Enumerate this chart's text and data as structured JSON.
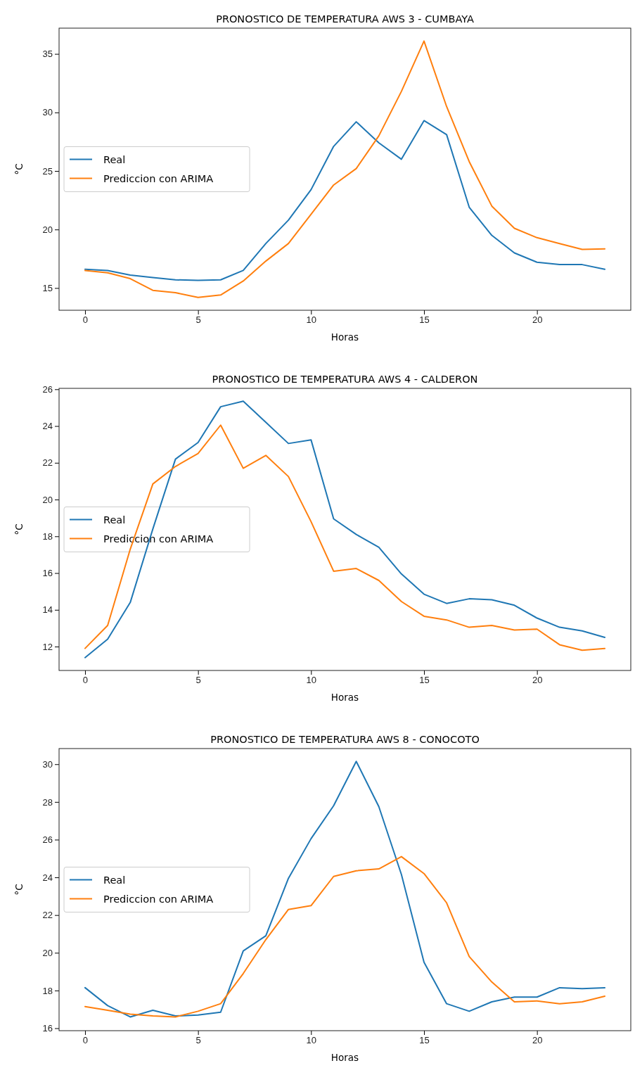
{
  "chart_data": [
    {
      "type": "line",
      "title": "PRONOSTICO DE TEMPERATURA AWS 3 - CUMBAYA",
      "xlabel": "Horas",
      "ylabel": "°C",
      "x": [
        0,
        1,
        2,
        3,
        4,
        5,
        6,
        7,
        8,
        9,
        10,
        11,
        12,
        13,
        14,
        15,
        16,
        17,
        18,
        19,
        20,
        21,
        22,
        23
      ],
      "xlim": [
        -1.15,
        24.15
      ],
      "xticks": [
        0,
        5,
        10,
        15,
        20
      ],
      "ylim": [
        13.1,
        37.2
      ],
      "yticks": [
        15,
        20,
        25,
        30,
        35
      ],
      "legend": "left",
      "series": [
        {
          "name": "Real",
          "color": "#1f77b4",
          "values": [
            16.6,
            16.5,
            16.1,
            15.9,
            15.7,
            15.65,
            15.7,
            16.5,
            18.8,
            20.8,
            23.4,
            27.1,
            29.2,
            27.4,
            26.0,
            29.3,
            28.1,
            21.9,
            19.5,
            18.0,
            17.2,
            17.0,
            17.0,
            16.6
          ]
        },
        {
          "name": "Prediccion con ARIMA",
          "color": "#ff7f0e",
          "values": [
            16.5,
            16.3,
            15.8,
            14.8,
            14.6,
            14.2,
            14.4,
            15.6,
            17.3,
            18.8,
            21.3,
            23.8,
            25.2,
            28.0,
            31.8,
            36.1,
            30.5,
            25.8,
            22.0,
            20.1,
            19.3,
            18.8,
            18.3,
            18.35
          ]
        }
      ]
    },
    {
      "type": "line",
      "title": "PRONOSTICO DE TEMPERATURA AWS 4 - CALDERON",
      "xlabel": "Horas",
      "ylabel": "°C",
      "x": [
        0,
        1,
        2,
        3,
        4,
        5,
        6,
        7,
        8,
        9,
        10,
        11,
        12,
        13,
        14,
        15,
        16,
        17,
        18,
        19,
        20,
        21,
        22,
        23
      ],
      "xlim": [
        -1.15,
        24.15
      ],
      "xticks": [
        0,
        5,
        10,
        15,
        20
      ],
      "ylim": [
        10.7,
        26.05
      ],
      "yticks": [
        12,
        14,
        16,
        18,
        20,
        22,
        24,
        26
      ],
      "legend": "left",
      "series": [
        {
          "name": "Real",
          "color": "#1f77b4",
          "values": [
            11.4,
            12.4,
            14.4,
            18.4,
            22.2,
            23.1,
            25.05,
            25.35,
            24.2,
            23.05,
            23.25,
            18.95,
            18.1,
            17.4,
            15.95,
            14.85,
            14.35,
            14.6,
            14.55,
            14.25,
            13.55,
            13.05,
            12.85,
            12.5
          ]
        },
        {
          "name": "Prediccion con ARIMA",
          "color": "#ff7f0e",
          "values": [
            11.9,
            13.15,
            17.3,
            20.85,
            21.8,
            22.5,
            24.05,
            21.7,
            22.4,
            21.25,
            18.8,
            16.1,
            16.25,
            15.6,
            14.45,
            13.65,
            13.45,
            13.05,
            13.15,
            12.9,
            12.95,
            12.1,
            11.8,
            11.9
          ]
        }
      ]
    },
    {
      "type": "line",
      "title": "PRONOSTICO DE TEMPERATURA AWS 8 - CONOCOTO",
      "xlabel": "Horas",
      "ylabel": "°C",
      "x": [
        0,
        1,
        2,
        3,
        4,
        5,
        6,
        7,
        8,
        9,
        10,
        11,
        12,
        13,
        14,
        15,
        16,
        17,
        18,
        19,
        20,
        21,
        22,
        23
      ],
      "xlim": [
        -1.15,
        24.15
      ],
      "xticks": [
        0,
        5,
        10,
        15,
        20
      ],
      "ylim": [
        15.87,
        30.83
      ],
      "yticks": [
        16,
        18,
        20,
        22,
        24,
        26,
        28,
        30
      ],
      "legend": "left",
      "series": [
        {
          "name": "Real",
          "color": "#1f77b4",
          "values": [
            18.15,
            17.2,
            16.6,
            16.95,
            16.65,
            16.7,
            16.85,
            20.1,
            20.9,
            23.95,
            26.05,
            27.8,
            30.15,
            27.75,
            24.15,
            19.5,
            17.3,
            16.9,
            17.4,
            17.65,
            17.65,
            18.15,
            18.1,
            18.15
          ]
        },
        {
          "name": "Prediccion con ARIMA",
          "color": "#ff7f0e",
          "values": [
            17.15,
            16.95,
            16.75,
            16.65,
            16.6,
            16.9,
            17.3,
            18.9,
            20.7,
            22.3,
            22.5,
            24.05,
            24.35,
            24.45,
            25.1,
            24.2,
            22.65,
            19.8,
            18.45,
            17.4,
            17.45,
            17.3,
            17.4,
            17.7
          ]
        }
      ]
    }
  ]
}
